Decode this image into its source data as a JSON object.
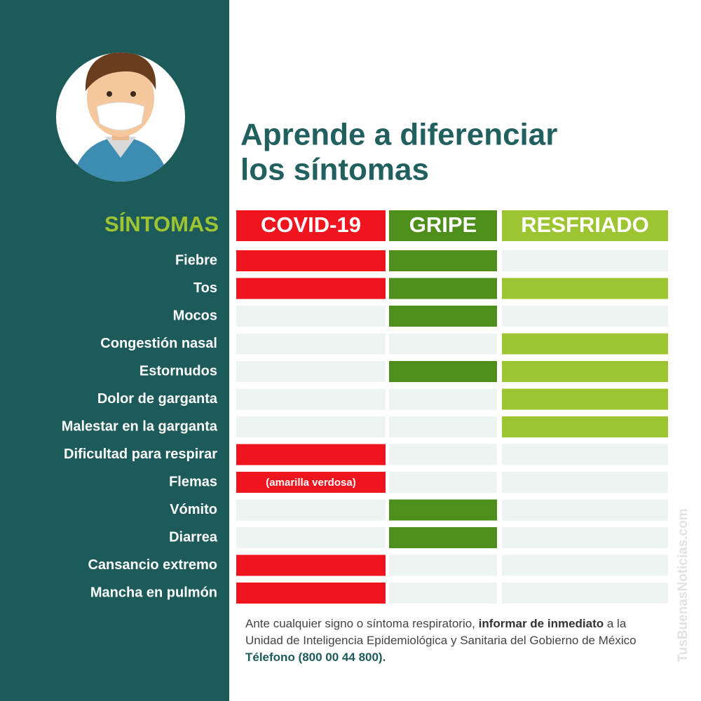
{
  "header": {
    "title_lines": [
      "Aprende a diferenciar",
      "los síntomas"
    ]
  },
  "table": {
    "row_header": "SÍNTOMAS",
    "columns": [
      "COVID-19",
      "GRIPE",
      "RESFRIADO"
    ],
    "column_colors": [
      "#f0141e",
      "#4e8f1c",
      "#9dc431"
    ],
    "rows": [
      {
        "label": "Fiebre",
        "cells": [
          true,
          true,
          false
        ]
      },
      {
        "label": "Tos",
        "cells": [
          true,
          true,
          true
        ]
      },
      {
        "label": "Mocos",
        "cells": [
          false,
          true,
          false
        ]
      },
      {
        "label": "Congestión nasal",
        "cells": [
          false,
          false,
          true
        ]
      },
      {
        "label": "Estornudos",
        "cells": [
          false,
          true,
          true
        ]
      },
      {
        "label": "Dolor de garganta",
        "cells": [
          false,
          false,
          true
        ]
      },
      {
        "label": "Malestar en la garganta",
        "cells": [
          false,
          false,
          true
        ]
      },
      {
        "label": "Dificultad para respirar",
        "cells": [
          true,
          false,
          false
        ]
      },
      {
        "label": "Flemas",
        "cells": [
          "(amarilla verdosa)",
          false,
          false
        ]
      },
      {
        "label": "Vómito",
        "cells": [
          false,
          true,
          false
        ]
      },
      {
        "label": "Diarrea",
        "cells": [
          false,
          true,
          false
        ]
      },
      {
        "label": "Cansancio extremo",
        "cells": [
          true,
          false,
          false
        ]
      },
      {
        "label": "Mancha en pulmón",
        "cells": [
          true,
          false,
          false
        ]
      }
    ]
  },
  "footer": {
    "text_1": "Ante cualquier signo o síntoma respiratorio, ",
    "bold": "informar de inmediato",
    "text_2": " a la Unidad de Inteligencia Epidemiológica y Sanitaria del Gobierno de México",
    "phone": "Télefono (800 00 44 800)."
  },
  "watermark": "TusBuenasNoticias.com"
}
